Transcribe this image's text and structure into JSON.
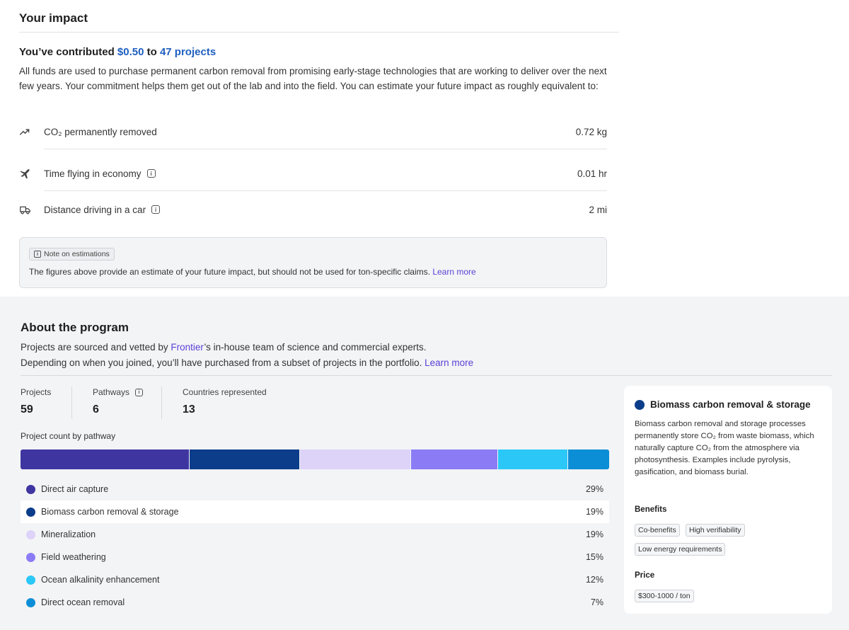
{
  "impact": {
    "title": "Your impact",
    "contrib_prefix": "You’ve contributed ",
    "amount": "$0.50",
    "contrib_mid": " to ",
    "projects": "47 projects",
    "description": "All funds are used to purchase permanent carbon removal from promising early-stage technologies that are working to deliver over the next few years. Your commitment helps them get out of the lab and into the field. You can estimate your future impact as roughly equivalent to:",
    "equivalents": [
      {
        "icon": "trending-up-icon",
        "label": "CO₂ permanently removed",
        "value": "0.72 kg"
      },
      {
        "icon": "airplane-icon",
        "label": "Time flying in economy",
        "value": "0.01 hr"
      },
      {
        "icon": "truck-icon",
        "label": "Distance driving in a car",
        "value": "2 mi"
      }
    ],
    "note": {
      "tag": "Note on estimations",
      "text": "The figures above provide an estimate of your future impact, but should not be used for ton-specific claims. ",
      "link": "Learn more"
    }
  },
  "about": {
    "title": "About the program",
    "line1_prefix": "Projects are sourced and vetted by ",
    "line1_link": "Frontier",
    "line1_suffix": "’s in-house team of science and commercial experts.",
    "line2": "Depending on when you joined, you’ll have purchased from a subset of projects in the portfolio. ",
    "line2_link": "Learn more",
    "stats": [
      {
        "label": "Projects",
        "value": "59"
      },
      {
        "label": "Pathways",
        "value": "6"
      },
      {
        "label": "Countries represented",
        "value": "13"
      }
    ],
    "pathway_label": "Project count by pathway",
    "pathways": [
      {
        "name": "Direct air capture",
        "pct": "29%",
        "color": "#3f35a1",
        "share": 29
      },
      {
        "name": "Biomass carbon removal & storage",
        "pct": "19%",
        "color": "#0b3d8a",
        "share": 19
      },
      {
        "name": "Mineralization",
        "pct": "19%",
        "color": "#ddd3f8",
        "share": 19
      },
      {
        "name": "Field weathering",
        "pct": "15%",
        "color": "#8b7cf6",
        "share": 15
      },
      {
        "name": "Ocean alkalinity enhancement",
        "pct": "12%",
        "color": "#2bc8f7",
        "share": 12
      },
      {
        "name": "Direct ocean removal",
        "pct": "7%",
        "color": "#0b8ed6",
        "share": 7
      }
    ],
    "selected_index": 1,
    "detail": {
      "title": "Biomass carbon removal & storage",
      "description": "Biomass carbon removal and storage processes permanently store CO₂ from waste biomass, which naturally capture CO₂ from the atmosphere via photosynthesis. Examples include pyrolysis, gasification, and biomass burial.",
      "benefits_heading": "Benefits",
      "benefits": [
        "Co-benefits",
        "High verifiability",
        "Low energy requirements"
      ],
      "price_heading": "Price",
      "price": "$300-1000 / ton"
    }
  }
}
